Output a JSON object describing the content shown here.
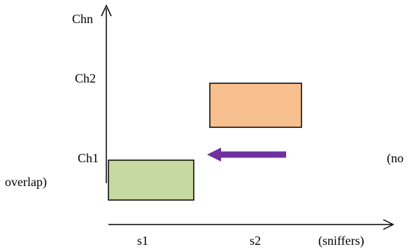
{
  "axis_labels": {
    "y_top": "Chn",
    "y_mid": "Ch2",
    "y_low": "Ch1",
    "x_first": "s1",
    "x_second": "s2",
    "x_unit": "(sniffers)"
  },
  "note": {
    "line1": "(no",
    "line2": "overlap)"
  },
  "colors": {
    "block_s1_ch1": "#c5d9a0",
    "block_s2_ch2": "#f9c08f",
    "shift_arrow": "#7030a0",
    "outline": "#000000"
  }
}
